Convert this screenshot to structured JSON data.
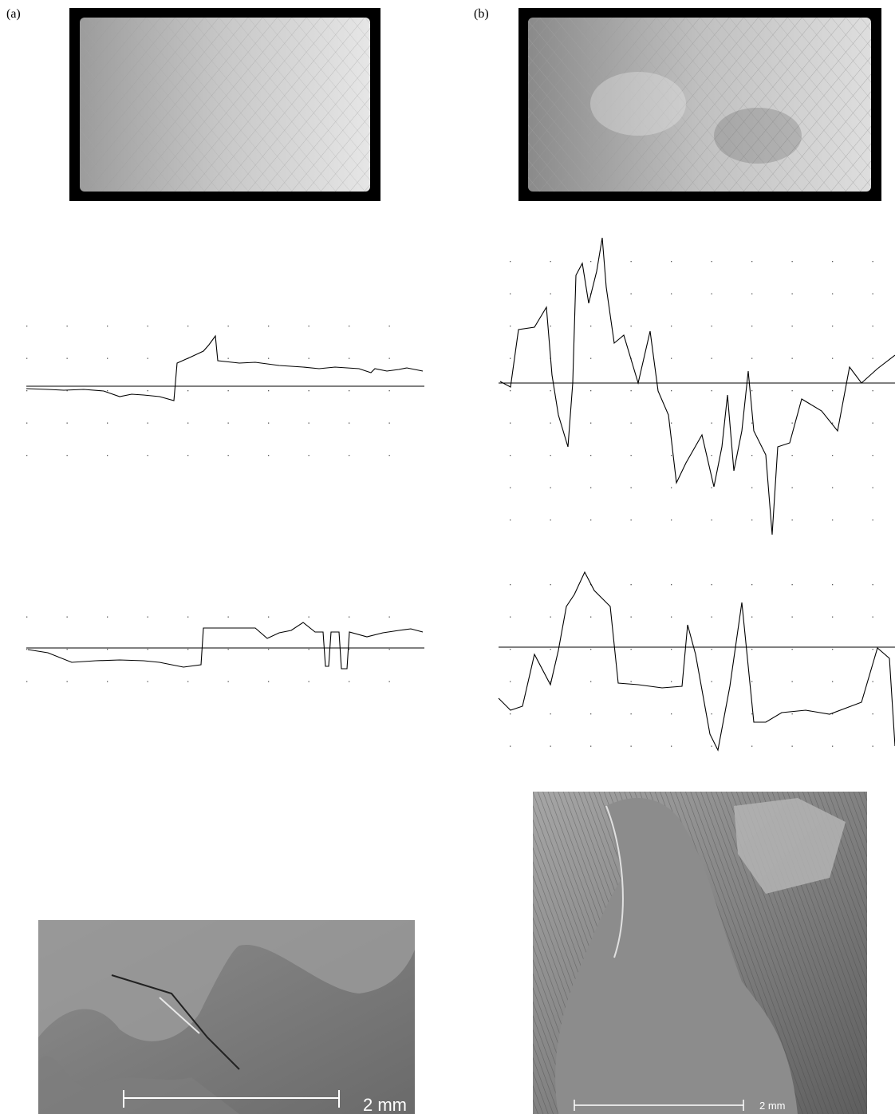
{
  "panels": [
    {
      "label": "(a)",
      "scale_bar": "2 mm"
    },
    {
      "label": "(b)",
      "scale_bar": "2 mm"
    }
  ]
}
